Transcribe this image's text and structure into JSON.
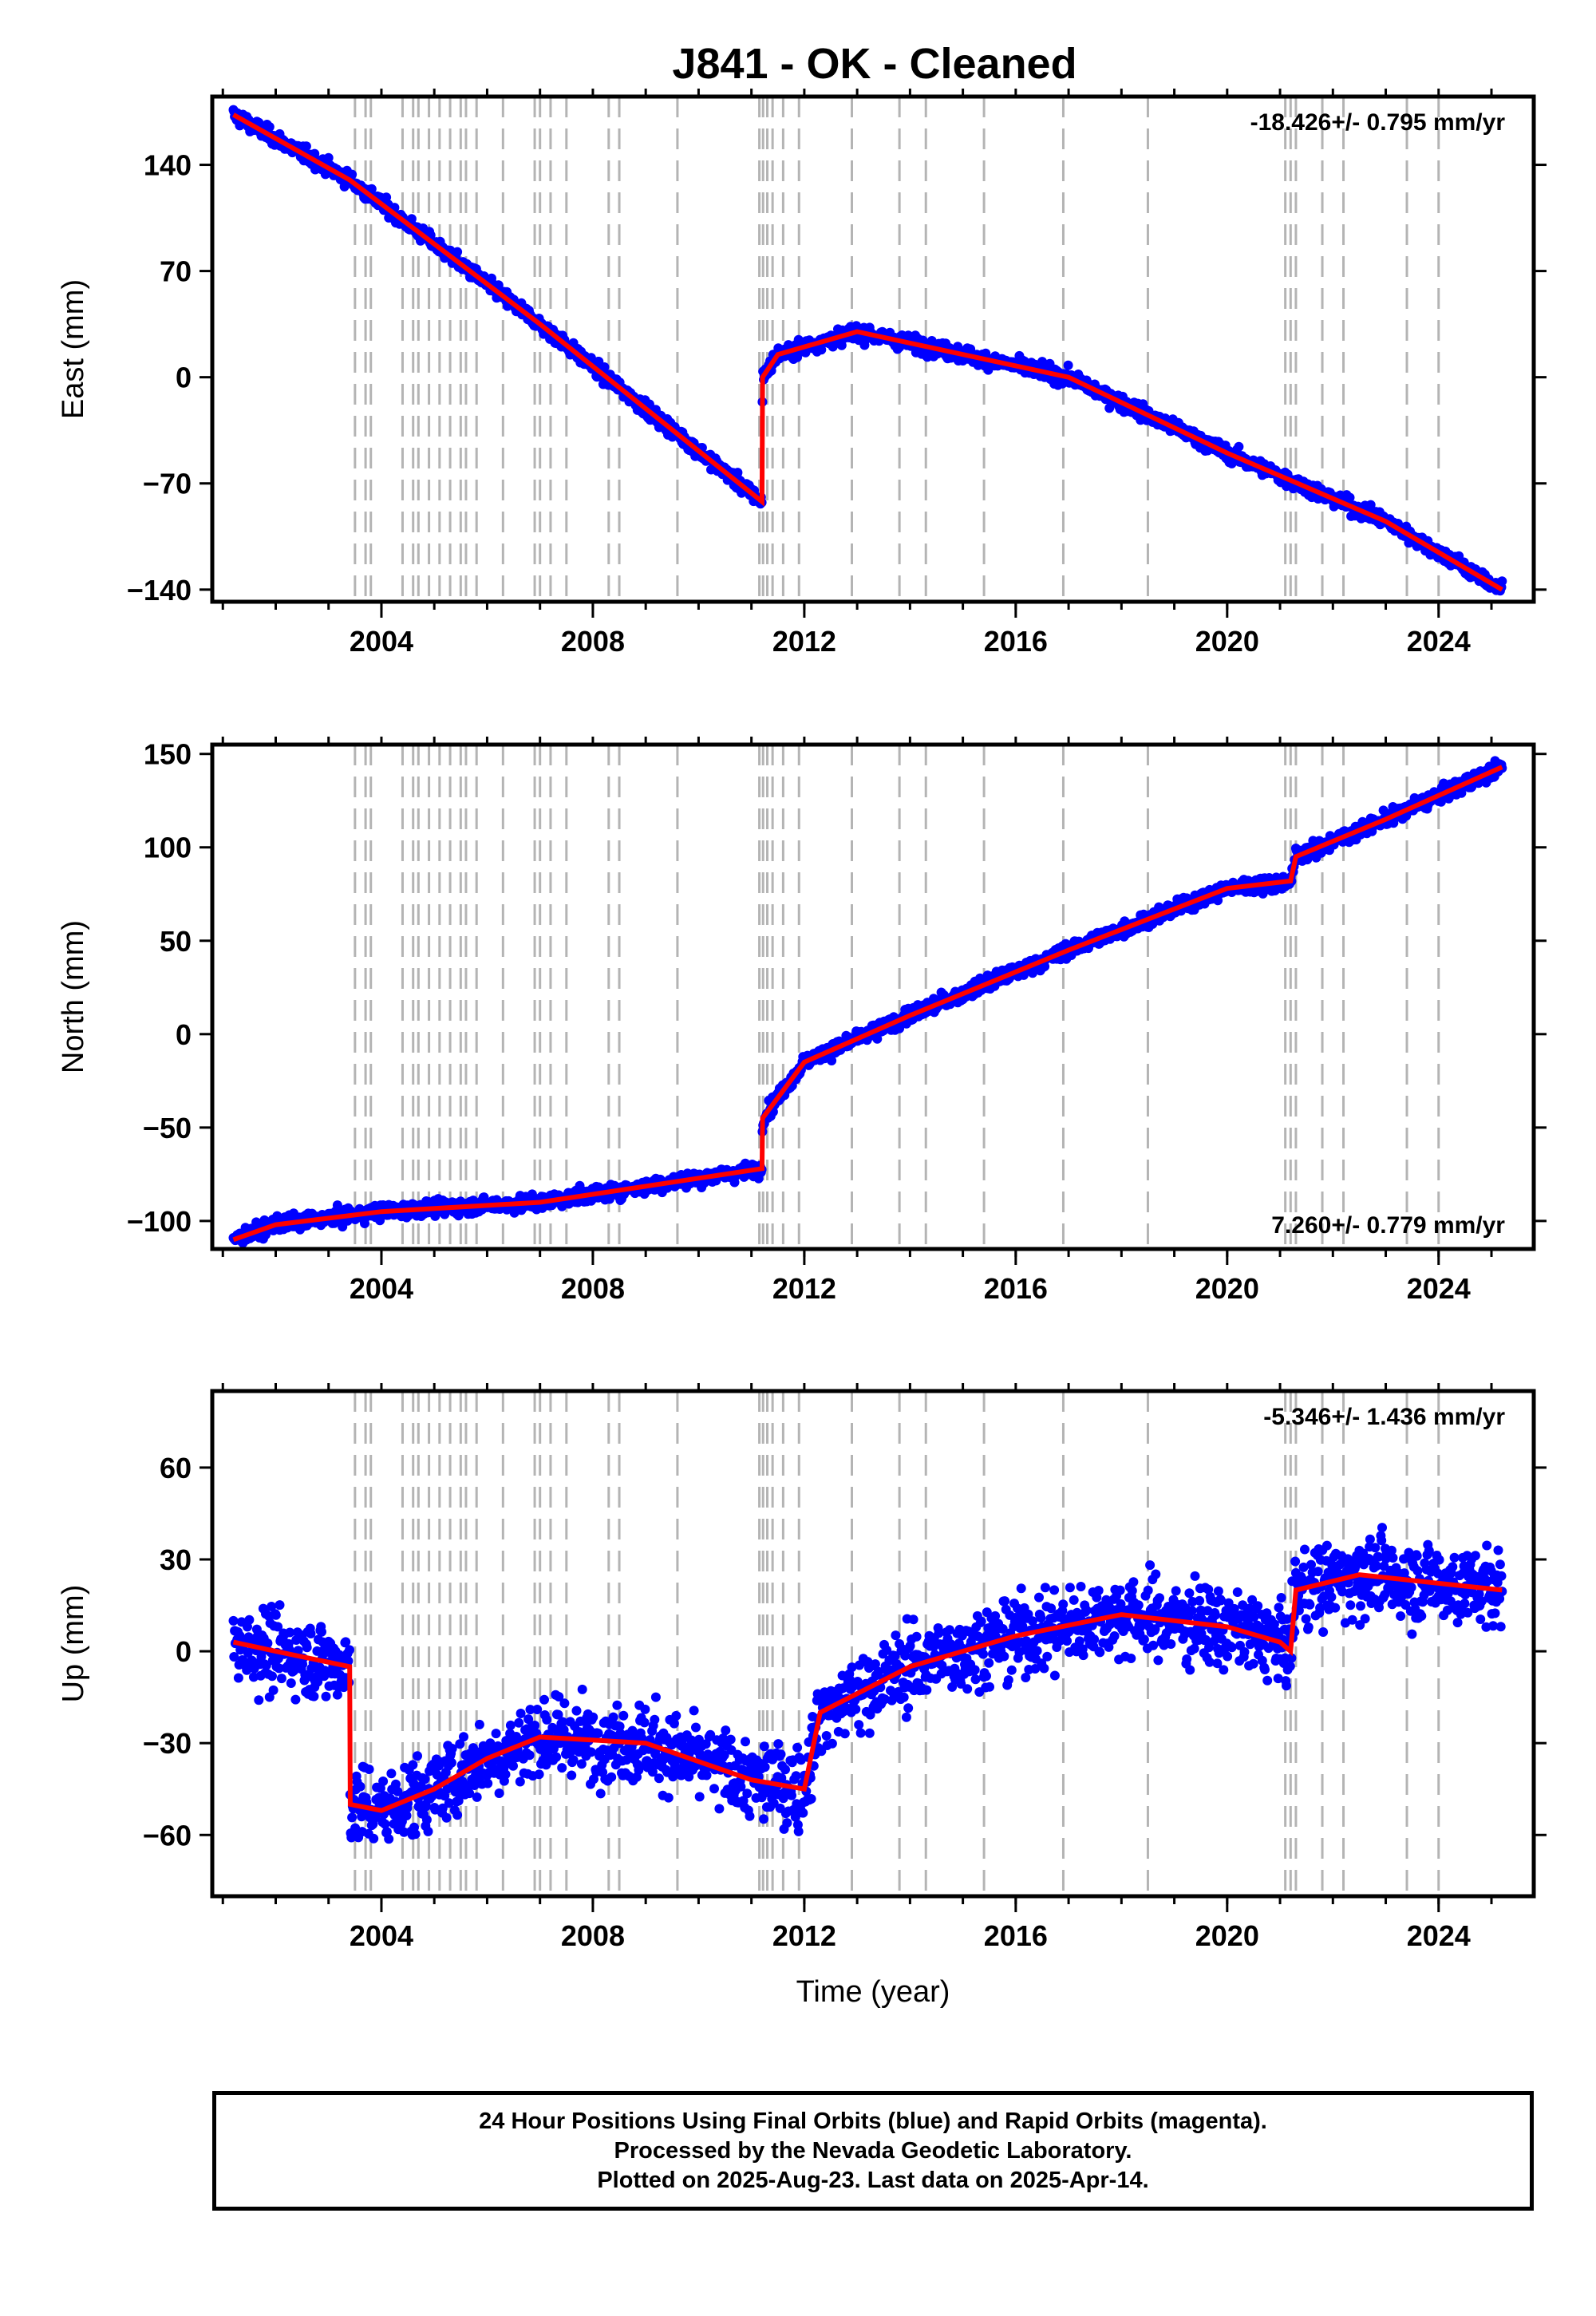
{
  "title": "J841  - OK - Cleaned",
  "colors": {
    "final_orbits": "#0000ff",
    "model": "#ff0000",
    "event_lines": "#b4b4b4",
    "frame": "#000000"
  },
  "chart_data": [
    {
      "type": "scatter",
      "ylabel": "East (mm)",
      "xlim": [
        2000.8,
        2025.8
      ],
      "ylim": [
        -148,
        185
      ],
      "yticks": [
        {
          "v": 140,
          "label": "140"
        },
        {
          "v": 70,
          "label": "70"
        },
        {
          "v": 0,
          "label": "0"
        },
        {
          "v": -70,
          "label": "−70"
        },
        {
          "v": -140,
          "label": "−140"
        }
      ],
      "xticks": [
        {
          "v": 2004,
          "label": "2004"
        },
        {
          "v": 2008,
          "label": "2008"
        },
        {
          "v": 2012,
          "label": "2012"
        },
        {
          "v": 2016,
          "label": "2016"
        },
        {
          "v": 2020,
          "label": "2020"
        },
        {
          "v": 2024,
          "label": "2024"
        }
      ],
      "rate_label": "-18.426+/- 0.795 mm/yr",
      "rate_position": "top-right",
      "model": [
        [
          2001.2,
          173
        ],
        [
          2003.4,
          130
        ],
        [
          2007.0,
          35
        ],
        [
          2011.2,
          -82
        ],
        [
          2011.21,
          0
        ],
        [
          2011.5,
          15
        ],
        [
          2013.0,
          30
        ],
        [
          2017.0,
          0
        ],
        [
          2020.0,
          -50
        ],
        [
          2021.2,
          -68
        ],
        [
          2023.0,
          -95
        ],
        [
          2025.2,
          -140
        ]
      ]
    },
    {
      "type": "scatter",
      "ylabel": "North (mm)",
      "xlim": [
        2000.8,
        2025.8
      ],
      "ylim": [
        -115,
        155
      ],
      "yticks": [
        {
          "v": 150,
          "label": "150"
        },
        {
          "v": 100,
          "label": "100"
        },
        {
          "v": 50,
          "label": "50"
        },
        {
          "v": 0,
          "label": "0"
        },
        {
          "v": -50,
          "label": "−50"
        },
        {
          "v": -100,
          "label": "−100"
        }
      ],
      "xticks": [
        {
          "v": 2004,
          "label": "2004"
        },
        {
          "v": 2008,
          "label": "2008"
        },
        {
          "v": 2012,
          "label": "2012"
        },
        {
          "v": 2016,
          "label": "2016"
        },
        {
          "v": 2020,
          "label": "2020"
        },
        {
          "v": 2024,
          "label": "2024"
        }
      ],
      "rate_label": "7.260+/- 0.779 mm/yr",
      "rate_position": "bottom-right",
      "model": [
        [
          2001.2,
          -110
        ],
        [
          2002.0,
          -102
        ],
        [
          2004.0,
          -95
        ],
        [
          2007.0,
          -90
        ],
        [
          2011.2,
          -72
        ],
        [
          2011.21,
          -45
        ],
        [
          2012.0,
          -15
        ],
        [
          2014.0,
          10
        ],
        [
          2017.0,
          45
        ],
        [
          2020.0,
          78
        ],
        [
          2021.2,
          82
        ],
        [
          2021.3,
          95
        ],
        [
          2023.0,
          115
        ],
        [
          2025.2,
          143
        ]
      ]
    },
    {
      "type": "scatter",
      "ylabel": "Up (mm)",
      "xlabel": "Time (year)",
      "xlim": [
        2000.8,
        2025.8
      ],
      "ylim": [
        -80,
        85
      ],
      "yticks": [
        {
          "v": 60,
          "label": "60"
        },
        {
          "v": 30,
          "label": "30"
        },
        {
          "v": 0,
          "label": "0"
        },
        {
          "v": -30,
          "label": "−30"
        },
        {
          "v": -60,
          "label": "−60"
        }
      ],
      "xticks": [
        {
          "v": 2004,
          "label": "2004"
        },
        {
          "v": 2008,
          "label": "2008"
        },
        {
          "v": 2012,
          "label": "2012"
        },
        {
          "v": 2016,
          "label": "2016"
        },
        {
          "v": 2020,
          "label": "2020"
        },
        {
          "v": 2024,
          "label": "2024"
        }
      ],
      "rate_label": "-5.346+/- 1.436 mm/yr",
      "rate_position": "top-right",
      "model": [
        [
          2001.2,
          3
        ],
        [
          2002.0,
          0
        ],
        [
          2003.4,
          -5
        ],
        [
          2003.41,
          -50
        ],
        [
          2004.0,
          -52
        ],
        [
          2005.0,
          -45
        ],
        [
          2006.0,
          -35
        ],
        [
          2007.0,
          -28
        ],
        [
          2009.0,
          -30
        ],
        [
          2011.0,
          -42
        ],
        [
          2012.0,
          -45
        ],
        [
          2012.3,
          -20
        ],
        [
          2014.0,
          -5
        ],
        [
          2016.0,
          5
        ],
        [
          2018.0,
          12
        ],
        [
          2020.0,
          8
        ],
        [
          2021.0,
          3
        ],
        [
          2021.2,
          0
        ],
        [
          2021.3,
          20
        ],
        [
          2022.5,
          25
        ],
        [
          2025.2,
          20
        ]
      ]
    }
  ],
  "footer": {
    "line1": "24 Hour Positions Using Final Orbits (blue) and Rapid Orbits (magenta).",
    "line2": "Processed by the Nevada Geodetic Laboratory.",
    "line3": "Plotted on 2025-Aug-23. Last data on 2025-Apr-14."
  }
}
